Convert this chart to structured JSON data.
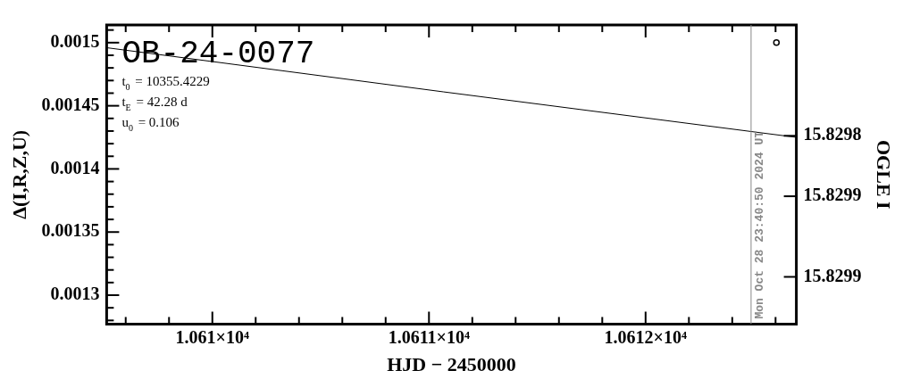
{
  "chart_data": {
    "type": "line",
    "title": "OB-24-0077",
    "xlabel": "HJD − 2450000",
    "ylabel": "Δ(I,R,Z,U)",
    "y2label": "OGLE I",
    "annotations": [
      "t$_{0}$ = 10355.4229",
      "t$_{E}$ = 42.28 d",
      "u$_{0}$ = 0.106",
      {
        "text": "Mon Oct 28 23:40:50 2024 UT",
        "x": 10612.487
      }
    ],
    "series": [
      {
        "color": "#000000",
        "x": [
          10609.512,
          10611.068,
          10612.696
        ],
        "values": [
          0.001496,
          0.001461,
          0.001425
        ],
        "marker": "none"
      },
      {
        "type": "scatter",
        "color": "#000000",
        "x": [
          10612.604
        ],
        "values": [
          0.0015
        ],
        "marker": "circle"
      }
    ],
    "xlim": [
      10609.512,
      10612.696
    ],
    "xticks": [
      {
        "value": 10609.6,
        "label": null
      },
      {
        "value": 10609.8,
        "label": null
      },
      {
        "value": 10610,
        "label": "1.061×10⁴"
      },
      {
        "value": 10610.2,
        "label": null
      },
      {
        "value": 10610.4,
        "label": null
      },
      {
        "value": 10610.6,
        "label": null
      },
      {
        "value": 10610.8,
        "label": null
      },
      {
        "value": 10611,
        "label": "1.0611×10⁴"
      },
      {
        "value": 10611.2,
        "label": null
      },
      {
        "value": 10611.4,
        "label": null
      },
      {
        "value": 10611.6,
        "label": null
      },
      {
        "value": 10611.8,
        "label": null
      },
      {
        "value": 10612,
        "label": "1.0612×10⁴"
      },
      {
        "value": 10612.2,
        "label": null
      },
      {
        "value": 10612.4,
        "label": null
      },
      {
        "value": 10612.6,
        "label": null
      }
    ],
    "ylim": [
      0.001277,
      0.001514
    ],
    "yticks": [
      {
        "value": 0.00128,
        "label": null
      },
      {
        "value": 0.00129,
        "label": null
      },
      0.0013,
      {
        "value": 0.00131,
        "label": null
      },
      {
        "value": 0.00132,
        "label": null
      },
      {
        "value": 0.00133,
        "label": null
      },
      {
        "value": 0.00134,
        "label": null
      },
      0.00135,
      {
        "value": 0.00136,
        "label": null
      },
      {
        "value": 0.00137,
        "label": null
      },
      {
        "value": 0.00138,
        "label": null
      },
      {
        "value": 0.00139,
        "label": null
      },
      0.0014,
      {
        "value": 0.00141,
        "label": null
      },
      {
        "value": 0.00142,
        "label": null
      },
      {
        "value": 0.00143,
        "label": null
      },
      {
        "value": 0.00144,
        "label": null
      },
      0.00145,
      {
        "value": 0.00146,
        "label": null
      },
      {
        "value": 0.00147,
        "label": null
      },
      {
        "value": 0.00148,
        "label": null
      },
      {
        "value": 0.00149,
        "label": null
      },
      0.0015,
      {
        "value": 0.00151,
        "label": null
      }
    ],
    "y2lim": [
      15.829987,
      15.82969
    ],
    "y2ticks": [
      {
        "value": 15.8298,
        "label": "15.8298"
      },
      {
        "value": 15.82986,
        "label": "15.8299"
      },
      {
        "value": 15.82994,
        "label": "15.8299"
      }
    ],
    "ref_lines": [
      {
        "axis": "x",
        "value": 10612.487,
        "color": "#888888"
      }
    ],
    "grid": false,
    "legend": false
  }
}
